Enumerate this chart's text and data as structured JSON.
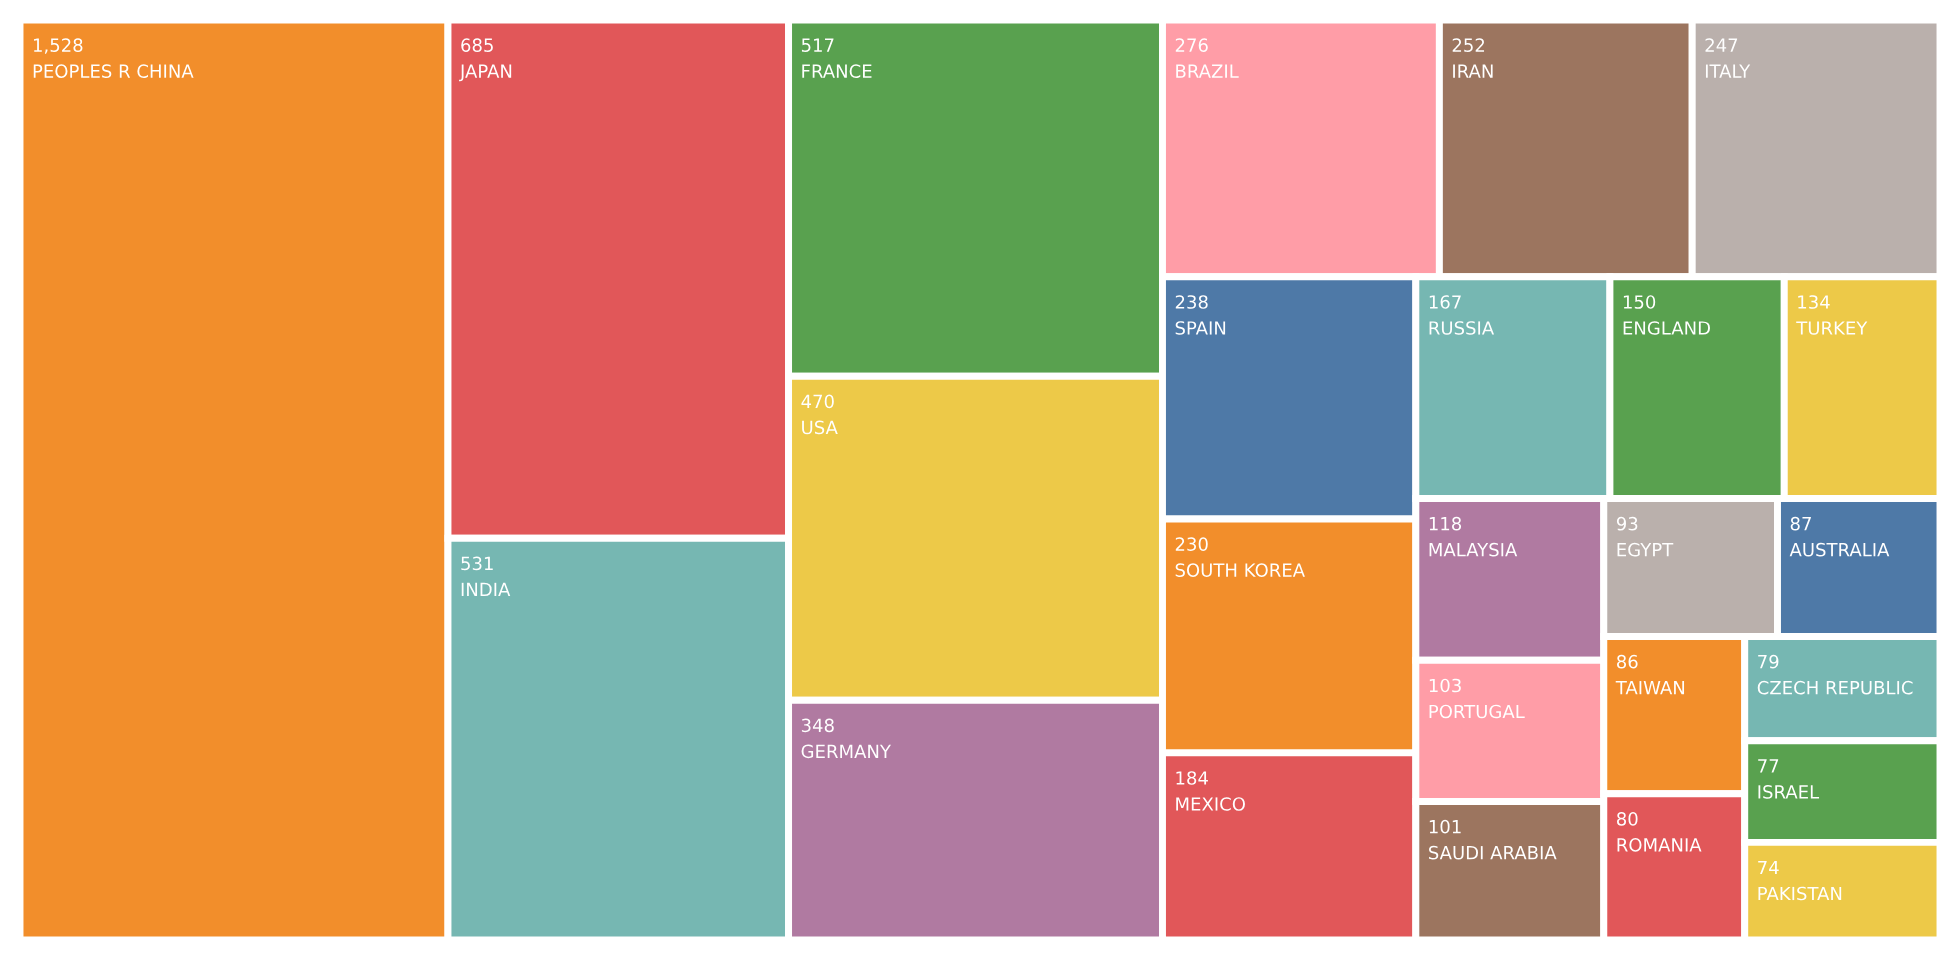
{
  "chart_data": {
    "type": "other",
    "categories": [
      "PEOPLES R CHINA",
      "JAPAN",
      "INDIA",
      "FRANCE",
      "USA",
      "GERMANY",
      "BRAZIL",
      "IRAN",
      "ITALY",
      "SPAIN",
      "SOUTH KOREA",
      "MEXICO",
      "RUSSIA",
      "ENGLAND",
      "TURKEY",
      "MALAYSIA",
      "PORTUGAL",
      "SAUDI ARABIA",
      "EGYPT",
      "AUSTRALIA",
      "TAIWAN",
      "ROMANIA",
      "CZECH REPUBLIC",
      "ISRAEL",
      "PAKISTAN"
    ],
    "values": [
      1528,
      685,
      531,
      517,
      470,
      348,
      276,
      252,
      247,
      238,
      230,
      184,
      167,
      150,
      134,
      118,
      103,
      101,
      93,
      87,
      86,
      80,
      79,
      77,
      74
    ],
    "value_labels": [
      "1,528",
      "685",
      "531",
      "517",
      "470",
      "348",
      "276",
      "252",
      "247",
      "238",
      "230",
      "184",
      "167",
      "150",
      "134",
      "118",
      "103",
      "101",
      "93",
      "87",
      "86",
      "80",
      "79",
      "77",
      "74"
    ],
    "colors": [
      "#f28e2b",
      "#e15759",
      "#76b7b2",
      "#59a14f",
      "#edc948",
      "#b07aa1",
      "#ff9da7",
      "#9c755f",
      "#bab0ac",
      "#4e79a7",
      "#f28e2b",
      "#e15759",
      "#76b7b2",
      "#59a14f",
      "#edc948",
      "#b07aa1",
      "#ff9da7",
      "#9c755f",
      "#bab0ac",
      "#4e79a7",
      "#f28e2b",
      "#e15759",
      "#76b7b2",
      "#59a14f",
      "#edc948"
    ]
  }
}
